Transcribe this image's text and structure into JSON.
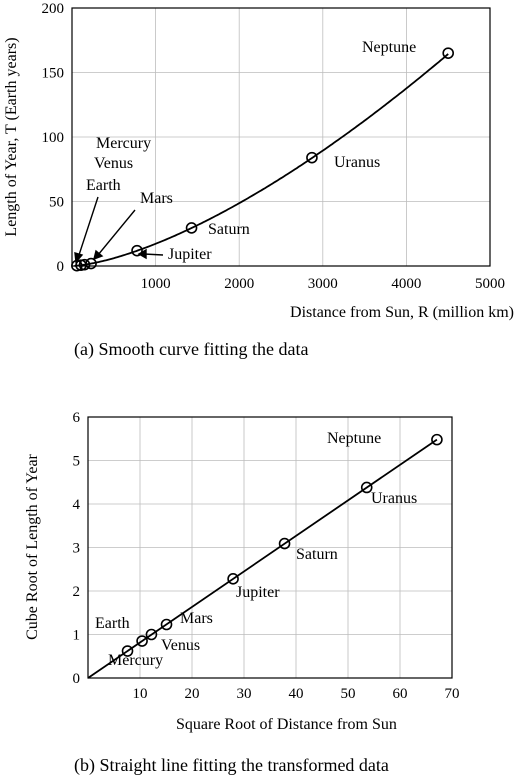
{
  "chart_data": [
    {
      "type": "scatter",
      "caption": "(a) Smooth curve fitting the data",
      "xlabel": "Distance from Sun, R (million km)",
      "ylabel": "Length of Year, T (Earth years)",
      "xlim": [
        0,
        5000
      ],
      "ylim": [
        0,
        200
      ],
      "xticks": [
        "1000",
        "2000",
        "3000",
        "4000",
        "5000"
      ],
      "yticks": [
        "0",
        "50",
        "100",
        "150",
        "200"
      ],
      "grid": true,
      "fit": "smooth curve",
      "points": [
        {
          "label": "Mercury",
          "x": 58,
          "y": 0.24
        },
        {
          "label": "Venus",
          "x": 108,
          "y": 0.62
        },
        {
          "label": "Earth",
          "x": 150,
          "y": 1.0
        },
        {
          "label": "Mars",
          "x": 228,
          "y": 1.88
        },
        {
          "label": "Jupiter",
          "x": 778,
          "y": 11.9
        },
        {
          "label": "Saturn",
          "x": 1430,
          "y": 29.5
        },
        {
          "label": "Uranus",
          "x": 2870,
          "y": 84
        },
        {
          "label": "Neptune",
          "x": 4500,
          "y": 165
        }
      ]
    },
    {
      "type": "scatter",
      "caption": "(b) Straight line fitting the transformed data",
      "xlabel": "Square Root of Distance from Sun",
      "ylabel": "Cube Root of Length of Year",
      "xlim": [
        0,
        70
      ],
      "ylim": [
        0,
        6
      ],
      "xticks": [
        "10",
        "20",
        "30",
        "40",
        "50",
        "60",
        "70"
      ],
      "yticks": [
        "0",
        "1",
        "2",
        "3",
        "4",
        "5",
        "6"
      ],
      "grid": true,
      "fit": "straight line",
      "points": [
        {
          "label": "Mercury",
          "x": 7.6,
          "y": 0.62
        },
        {
          "label": "Venus",
          "x": 10.4,
          "y": 0.85
        },
        {
          "label": "Earth",
          "x": 12.2,
          "y": 1.0
        },
        {
          "label": "Mars",
          "x": 15.1,
          "y": 1.23
        },
        {
          "label": "Jupiter",
          "x": 27.9,
          "y": 2.28
        },
        {
          "label": "Saturn",
          "x": 37.8,
          "y": 3.09
        },
        {
          "label": "Uranus",
          "x": 53.6,
          "y": 4.38
        },
        {
          "label": "Neptune",
          "x": 67.1,
          "y": 5.48
        }
      ]
    }
  ]
}
